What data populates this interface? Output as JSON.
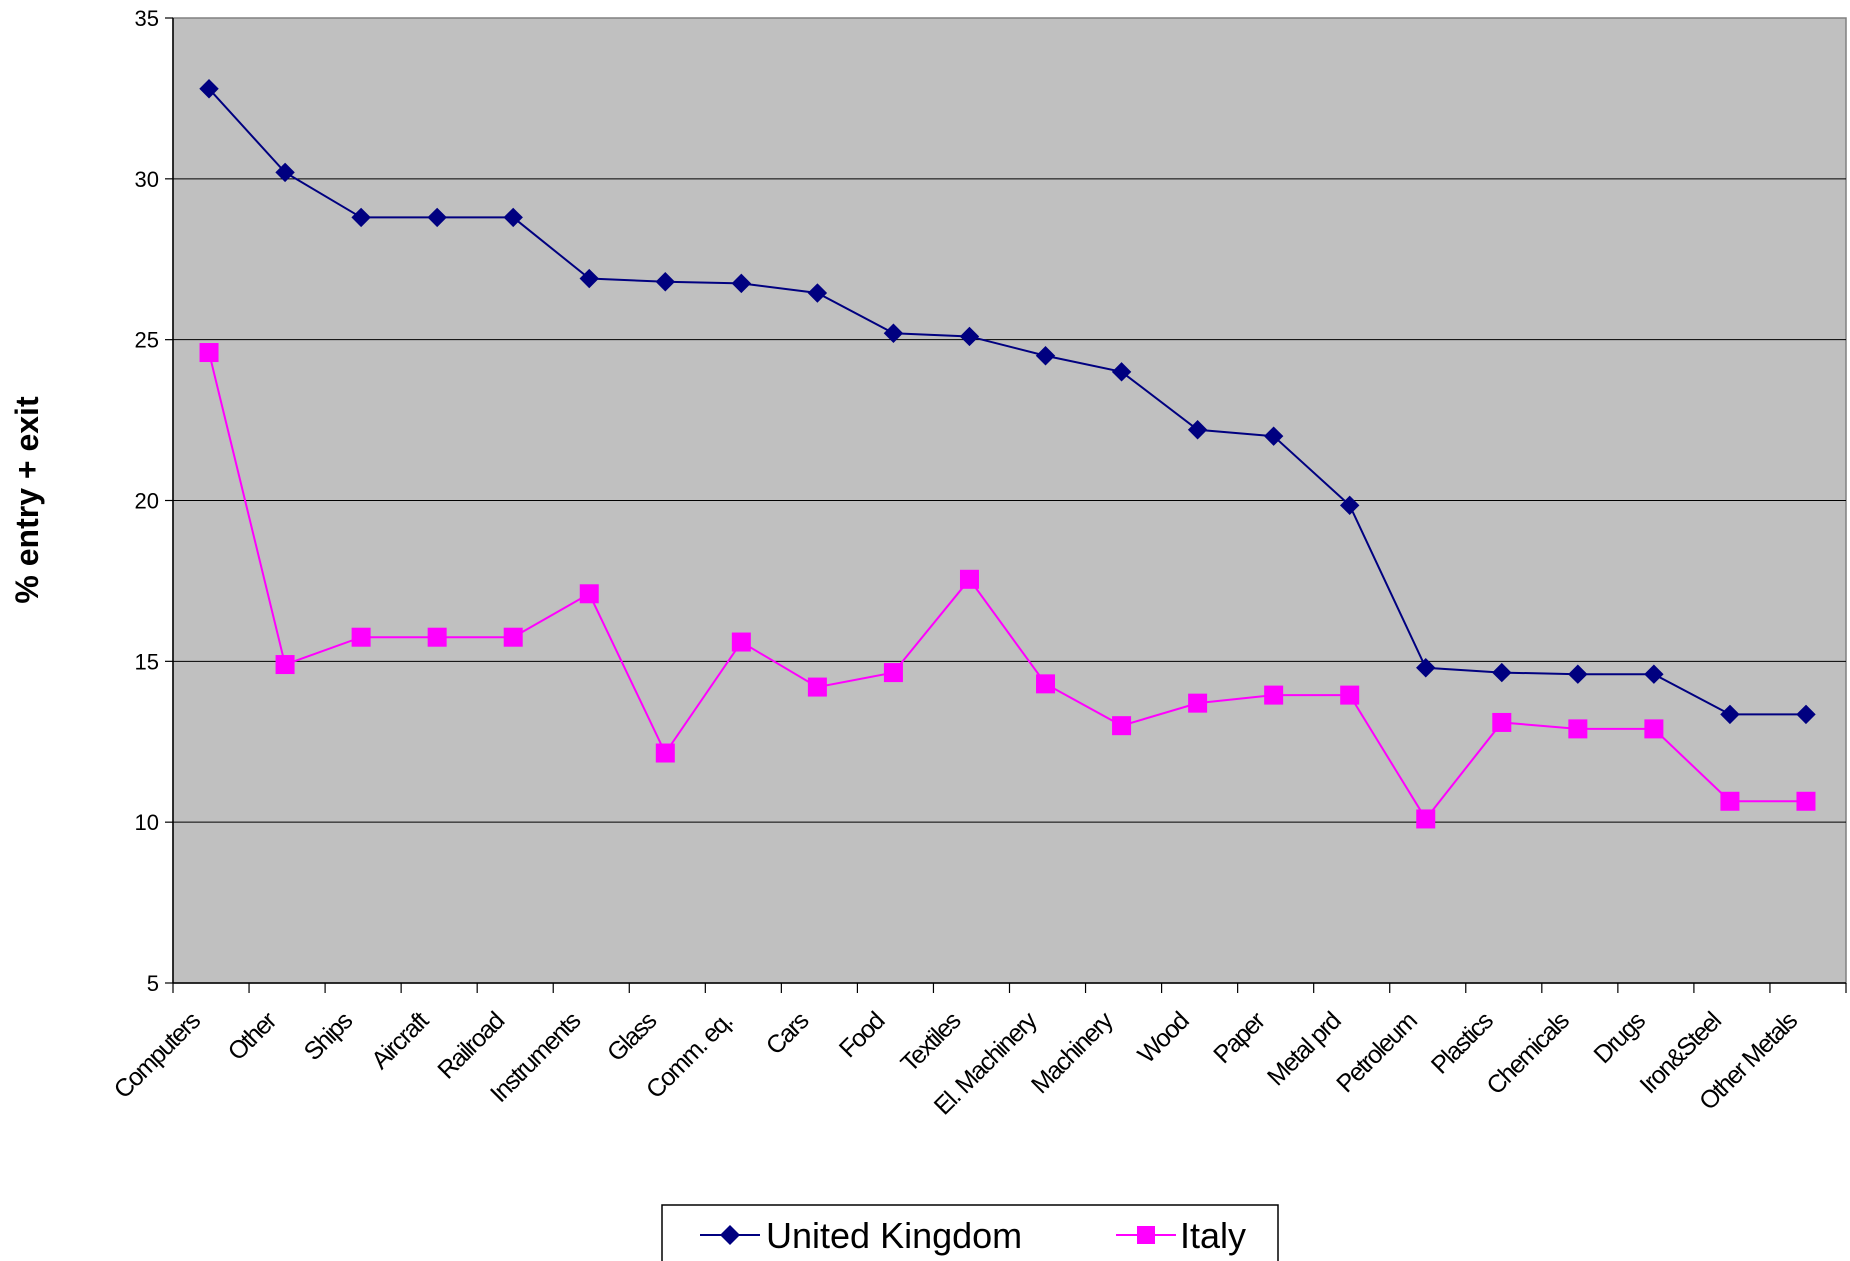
{
  "chart_data": {
    "type": "line",
    "title": "",
    "xlabel": "",
    "ylabel": "% entry + exit",
    "ylim": [
      5,
      35
    ],
    "yticks": [
      5,
      10,
      15,
      20,
      25,
      30,
      35
    ],
    "grid": true,
    "legend_position": "bottom",
    "categories": [
      "Computers",
      "Other",
      "Ships",
      "Aircraft",
      "Railroad",
      "Instruments",
      "Glass",
      "Comm. eq.",
      "Cars",
      "Food",
      "Textiles",
      "El. Machinery",
      "Machinery",
      "Wood",
      "Paper",
      "Metal prd",
      "Petroleum",
      "Plastics",
      "Chemicals",
      "Drugs",
      "Iron&Steel",
      "Other Metals"
    ],
    "series": [
      {
        "name": "United Kingdom",
        "color": "#000080",
        "marker": "diamond",
        "values": [
          32.8,
          30.2,
          28.8,
          28.8,
          28.8,
          26.9,
          26.8,
          26.75,
          26.45,
          25.2,
          25.1,
          24.5,
          24.0,
          22.2,
          22.0,
          19.85,
          14.8,
          14.65,
          14.6,
          14.6,
          13.35,
          13.35
        ]
      },
      {
        "name": "Italy",
        "color": "#FF00FF",
        "marker": "square",
        "values": [
          24.6,
          14.9,
          15.75,
          15.75,
          15.75,
          17.1,
          12.15,
          15.6,
          14.2,
          14.65,
          17.55,
          14.3,
          13.0,
          13.7,
          13.95,
          13.95,
          10.1,
          13.1,
          12.9,
          12.9,
          10.65,
          10.65
        ]
      }
    ],
    "plot_background": "#C0C0C0"
  }
}
